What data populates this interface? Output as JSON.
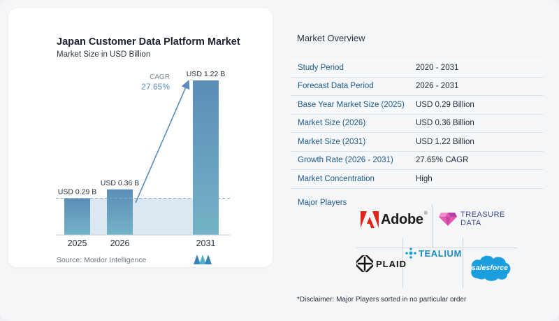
{
  "chart": {
    "title": "Japan Customer Data Platform Market",
    "subtitle": "Market Size in USD Billion",
    "source": "Source:  Mordor Intelligence",
    "cagr_label": "CAGR",
    "cagr_value": "27.65%"
  },
  "chart_data": {
    "type": "bar",
    "title": "Japan Customer Data Platform Market",
    "subtitle": "Market Size in USD Billion",
    "categories": [
      "2025",
      "2026",
      "2031"
    ],
    "values": [
      0.29,
      0.36,
      1.22
    ],
    "data_labels": [
      "USD 0.29 B",
      "USD 0.36 B",
      "USD 1.22 B"
    ],
    "ylim": [
      0,
      1.22
    ],
    "annotation": "CAGR 27.65%",
    "colors": {
      "bar_top": "#5b8db8",
      "bar_bottom": "#74b3c6",
      "area": "#dce8f1",
      "arrow": "#5b8db8"
    }
  },
  "overview": {
    "title": "Market Overview",
    "rows": [
      {
        "label": "Study Period",
        "value": "2020 - 2031"
      },
      {
        "label": "Forecast Data Period",
        "value": "2026 - 2031"
      },
      {
        "label": "Base Year Market Size (2025)",
        "value": "USD 0.29 Billion"
      },
      {
        "label": "Market Size (2026)",
        "value": "USD 0.36 Billion"
      },
      {
        "label": "Market Size (2031)",
        "value": "USD 1.22 Billion"
      },
      {
        "label": "Growth Rate (2026 - 2031)",
        "value": "27.65% CAGR"
      },
      {
        "label": "Market Concentration",
        "value": "High"
      }
    ],
    "players_label": "Major Players",
    "players": [
      "Adobe",
      "TREASURE DATA",
      "PLAID",
      "TEALIUM",
      "salesforce"
    ],
    "disclaimer": "*Disclaimer: Major Players sorted in no particular order"
  }
}
